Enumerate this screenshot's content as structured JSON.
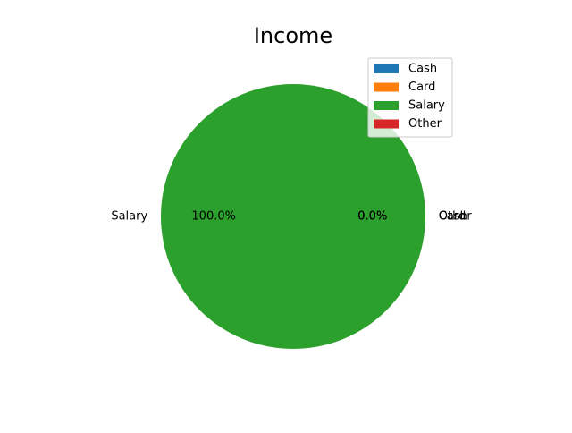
{
  "chart_data": {
    "type": "pie",
    "title": "Income",
    "categories": [
      "Cash",
      "Card",
      "Salary",
      "Other"
    ],
    "values": [
      0,
      0,
      1,
      0
    ],
    "percent_labels": [
      "0.0%",
      "0.0%",
      "100.0%",
      "0.0%"
    ],
    "colors": [
      "#1f77b4",
      "#ff7f0e",
      "#2ca02c",
      "#d62728"
    ],
    "legend": {
      "placement": "top-right",
      "entries": [
        "Cash",
        "Card",
        "Salary",
        "Other"
      ]
    }
  }
}
